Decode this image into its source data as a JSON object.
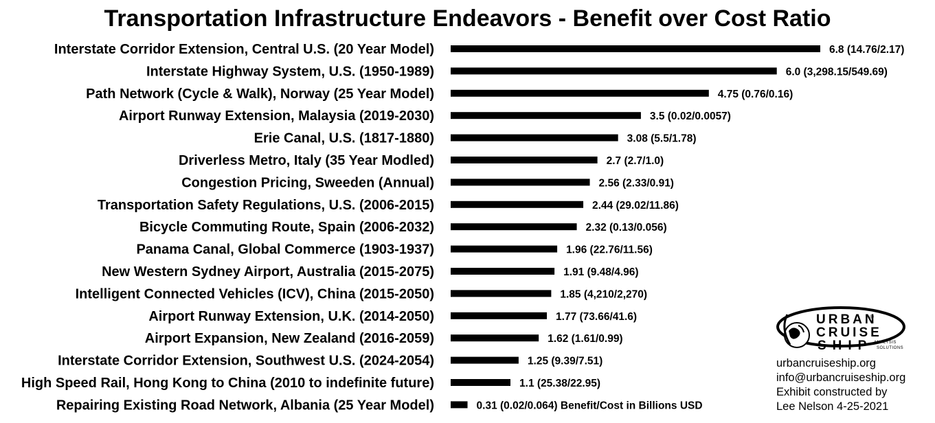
{
  "chart_data": {
    "type": "bar",
    "orientation": "horizontal",
    "title": "Transportation Infrastructure Endeavors - Benefit over Cost Ratio",
    "categories": [
      "Interstate Corridor Extension, Central U.S. (20 Year Model)",
      "Interstate Highway System, U.S. (1950-1989)",
      "Path Network (Cycle & Walk), Norway (25 Year Model)",
      "Airport Runway Extension, Malaysia (2019-2030)",
      "Erie Canal, U.S. (1817-1880)",
      "Driverless Metro, Italy (35 Year Modled)",
      "Congestion Pricing, Sweeden (Annual)",
      "Transportation Safety Regulations, U.S. (2006-2015)",
      "Bicycle Commuting Route, Spain (2006-2032)",
      "Panama Canal, Global Commerce (1903-1937)",
      "New Western Sydney Airport, Australia (2015-2075)",
      "Intelligent Connected Vehicles (ICV), China (2015-2050)",
      "Airport Runway Extension, U.K. (2014-2050)",
      "Airport Expansion, New Zealand (2016-2059)",
      "Interstate Corridor Extension, Southwest U.S. (2024-2054)",
      "High Speed Rail, Hong Kong to China (2010 to indefinite future)",
      "Repairing Existing Road Network, Albania (25 Year Model)"
    ],
    "values": [
      6.8,
      6.0,
      4.75,
      3.5,
      3.08,
      2.7,
      2.56,
      2.44,
      2.32,
      1.96,
      1.91,
      1.85,
      1.77,
      1.62,
      1.25,
      1.1,
      0.31
    ],
    "data_labels": [
      "6.8 (14.76/2.17)",
      "6.0 (3,298.15/549.69)",
      "4.75 (0.76/0.16)",
      "3.5 (0.02/0.0057)",
      "3.08 (5.5/1.78)",
      "2.7 (2.7/1.0)",
      "2.56 (2.33/0.91)",
      "2.44 (29.02/11.86)",
      "2.32 (0.13/0.056)",
      "1.96 (22.76/11.56)",
      "1.91 (9.48/4.96)",
      "1.85 (4,210/2,270)",
      "1.77 (73.66/41.6)",
      "1.62 (1.61/0.99)",
      "1.25 (9.39/7.51)",
      "1.1 (25.38/22.95)",
      "0.31 (0.02/0.064) Benefit/Cost in Billions USD"
    ],
    "bar_color": "#000000",
    "grid": false,
    "xlabel": "",
    "ylabel": ""
  },
  "branding": {
    "logo_words": [
      "URBAN",
      "CRUISE",
      "SHIP"
    ],
    "logo_registered": "®",
    "logo_subtitle": [
      "ANALYSIS",
      "SOLUTIONS"
    ],
    "info_lines": [
      "urbancruiseship.org",
      "info@urbancruiseship.org",
      "Exhibit constructed by",
      "Lee Nelson 4-25-2021"
    ]
  }
}
